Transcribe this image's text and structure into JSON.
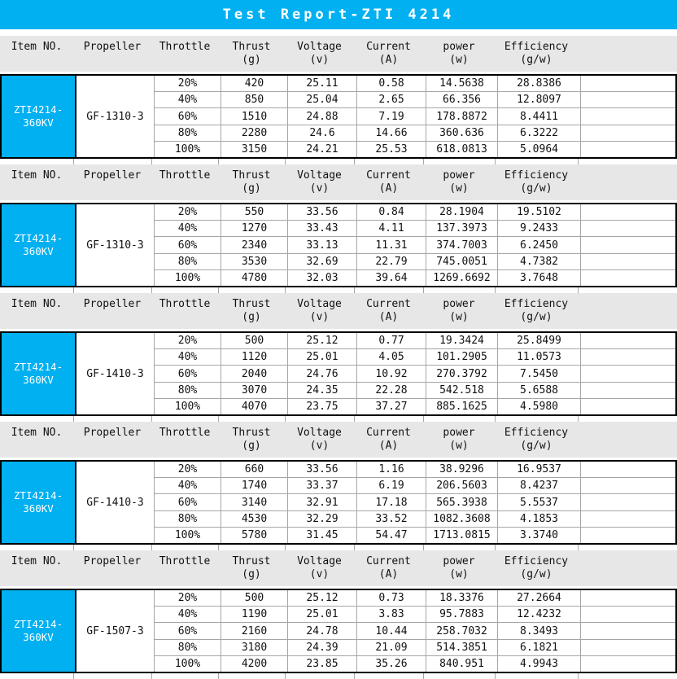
{
  "title": "Test Report-ZTI 4214",
  "colors": {
    "accent": "#00B0F0",
    "header-bg": "#e7e7e7",
    "grid": "#a6a6a6",
    "border": "#000000",
    "title_text": "#ffffff"
  },
  "columns": [
    {
      "label": "Item NO.",
      "unit": ""
    },
    {
      "label": "Propeller",
      "unit": ""
    },
    {
      "label": "Throttle",
      "unit": ""
    },
    {
      "label": "Thrust",
      "unit": "(g)"
    },
    {
      "label": "Voltage",
      "unit": "(v)"
    },
    {
      "label": "Current",
      "unit": "(A)"
    },
    {
      "label": "power",
      "unit": "(w)"
    },
    {
      "label": "Efficiency",
      "unit": "(g/w)"
    }
  ],
  "sections": [
    {
      "item_no": "ZTI4214-360KV",
      "propeller": "GF-1310-3",
      "rows": [
        {
          "throttle": "20%",
          "thrust": "420",
          "voltage": "25.11",
          "current": "0.58",
          "power": "14.5638",
          "efficiency": "28.8386"
        },
        {
          "throttle": "40%",
          "thrust": "850",
          "voltage": "25.04",
          "current": "2.65",
          "power": "66.356",
          "efficiency": "12.8097"
        },
        {
          "throttle": "60%",
          "thrust": "1510",
          "voltage": "24.88",
          "current": "7.19",
          "power": "178.8872",
          "efficiency": "8.4411"
        },
        {
          "throttle": "80%",
          "thrust": "2280",
          "voltage": "24.6",
          "current": "14.66",
          "power": "360.636",
          "efficiency": "6.3222"
        },
        {
          "throttle": "100%",
          "thrust": "3150",
          "voltage": "24.21",
          "current": "25.53",
          "power": "618.0813",
          "efficiency": "5.0964"
        }
      ]
    },
    {
      "item_no": "ZTI4214-360KV",
      "propeller": "GF-1310-3",
      "rows": [
        {
          "throttle": "20%",
          "thrust": "550",
          "voltage": "33.56",
          "current": "0.84",
          "power": "28.1904",
          "efficiency": "19.5102"
        },
        {
          "throttle": "40%",
          "thrust": "1270",
          "voltage": "33.43",
          "current": "4.11",
          "power": "137.3973",
          "efficiency": "9.2433"
        },
        {
          "throttle": "60%",
          "thrust": "2340",
          "voltage": "33.13",
          "current": "11.31",
          "power": "374.7003",
          "efficiency": "6.2450"
        },
        {
          "throttle": "80%",
          "thrust": "3530",
          "voltage": "32.69",
          "current": "22.79",
          "power": "745.0051",
          "efficiency": "4.7382"
        },
        {
          "throttle": "100%",
          "thrust": "4780",
          "voltage": "32.03",
          "current": "39.64",
          "power": "1269.6692",
          "efficiency": "3.7648"
        }
      ]
    },
    {
      "item_no": "ZTI4214-360KV",
      "propeller": "GF-1410-3",
      "rows": [
        {
          "throttle": "20%",
          "thrust": "500",
          "voltage": "25.12",
          "current": "0.77",
          "power": "19.3424",
          "efficiency": "25.8499"
        },
        {
          "throttle": "40%",
          "thrust": "1120",
          "voltage": "25.01",
          "current": "4.05",
          "power": "101.2905",
          "efficiency": "11.0573"
        },
        {
          "throttle": "60%",
          "thrust": "2040",
          "voltage": "24.76",
          "current": "10.92",
          "power": "270.3792",
          "efficiency": "7.5450"
        },
        {
          "throttle": "80%",
          "thrust": "3070",
          "voltage": "24.35",
          "current": "22.28",
          "power": "542.518",
          "efficiency": "5.6588"
        },
        {
          "throttle": "100%",
          "thrust": "4070",
          "voltage": "23.75",
          "current": "37.27",
          "power": "885.1625",
          "efficiency": "4.5980"
        }
      ]
    },
    {
      "item_no": "ZTI4214-360KV",
      "propeller": "GF-1410-3",
      "rows": [
        {
          "throttle": "20%",
          "thrust": "660",
          "voltage": "33.56",
          "current": "1.16",
          "power": "38.9296",
          "efficiency": "16.9537"
        },
        {
          "throttle": "40%",
          "thrust": "1740",
          "voltage": "33.37",
          "current": "6.19",
          "power": "206.5603",
          "efficiency": "8.4237"
        },
        {
          "throttle": "60%",
          "thrust": "3140",
          "voltage": "32.91",
          "current": "17.18",
          "power": "565.3938",
          "efficiency": "5.5537"
        },
        {
          "throttle": "80%",
          "thrust": "4530",
          "voltage": "32.29",
          "current": "33.52",
          "power": "1082.3608",
          "efficiency": "4.1853"
        },
        {
          "throttle": "100%",
          "thrust": "5780",
          "voltage": "31.45",
          "current": "54.47",
          "power": "1713.0815",
          "efficiency": "3.3740"
        }
      ]
    },
    {
      "item_no": "ZTI4214-360KV",
      "propeller": "GF-1507-3",
      "rows": [
        {
          "throttle": "20%",
          "thrust": "500",
          "voltage": "25.12",
          "current": "0.73",
          "power": "18.3376",
          "efficiency": "27.2664"
        },
        {
          "throttle": "40%",
          "thrust": "1190",
          "voltage": "25.01",
          "current": "3.83",
          "power": "95.7883",
          "efficiency": "12.4232"
        },
        {
          "throttle": "60%",
          "thrust": "2160",
          "voltage": "24.78",
          "current": "10.44",
          "power": "258.7032",
          "efficiency": "8.3493"
        },
        {
          "throttle": "80%",
          "thrust": "3180",
          "voltage": "24.39",
          "current": "21.09",
          "power": "514.3851",
          "efficiency": "6.1821"
        },
        {
          "throttle": "100%",
          "thrust": "4200",
          "voltage": "23.85",
          "current": "35.26",
          "power": "840.951",
          "efficiency": "4.9943"
        }
      ]
    }
  ]
}
